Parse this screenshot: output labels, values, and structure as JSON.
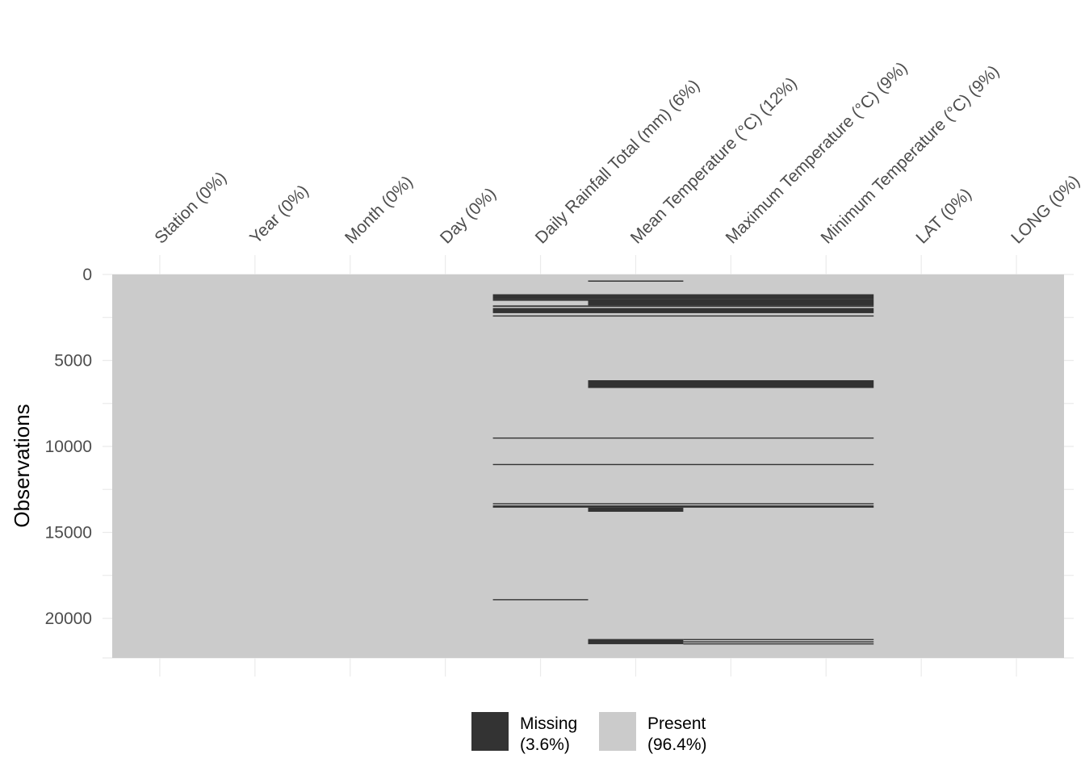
{
  "chart_data": {
    "type": "heatmap",
    "ylabel": "Observations",
    "n_rows": 22300,
    "columns": [
      {
        "name": "Station",
        "label": "Station (0%)"
      },
      {
        "name": "Year",
        "label": "Year (0%)"
      },
      {
        "name": "Month",
        "label": "Month (0%)"
      },
      {
        "name": "Day",
        "label": "Day (0%)"
      },
      {
        "name": "Daily Rainfall Total (mm)",
        "label": "Daily Rainfall Total (mm) (6%)"
      },
      {
        "name": "Mean Temperature (°C)",
        "label": "Mean Temperature (°C) (12%)"
      },
      {
        "name": "Maximum Temperature (°C)",
        "label": "Maximum Temperature (°C) (9%)"
      },
      {
        "name": "Minimum Temperature (°C)",
        "label": "Minimum Temperature (°C) (9%)"
      },
      {
        "name": "LAT",
        "label": "LAT (0%)"
      },
      {
        "name": "LONG",
        "label": "LONG (0%)"
      }
    ],
    "y_ticks": [
      {
        "value": 0,
        "label": "0"
      },
      {
        "value": 5000,
        "label": "5000"
      },
      {
        "value": 10000,
        "label": "10000"
      },
      {
        "value": 15000,
        "label": "15000"
      },
      {
        "value": 20000,
        "label": "20000"
      }
    ],
    "missing_segments": [
      {
        "col_start": 5,
        "col_end": 5,
        "start": 350,
        "end": 420
      },
      {
        "col_start": 4,
        "col_end": 7,
        "start": 1150,
        "end": 1450
      },
      {
        "col_start": 4,
        "col_end": 4,
        "start": 1450,
        "end": 1530
      },
      {
        "col_start": 5,
        "col_end": 7,
        "start": 1450,
        "end": 1800
      },
      {
        "col_start": 4,
        "col_end": 7,
        "start": 1800,
        "end": 1880
      },
      {
        "col_start": 4,
        "col_end": 7,
        "start": 1950,
        "end": 2250
      },
      {
        "col_start": 4,
        "col_end": 7,
        "start": 2380,
        "end": 2440
      },
      {
        "col_start": 5,
        "col_end": 7,
        "start": 6150,
        "end": 6600
      },
      {
        "col_start": 4,
        "col_end": 7,
        "start": 9480,
        "end": 9540
      },
      {
        "col_start": 4,
        "col_end": 7,
        "start": 11020,
        "end": 11080
      },
      {
        "col_start": 4,
        "col_end": 7,
        "start": 13300,
        "end": 13360
      },
      {
        "col_start": 4,
        "col_end": 7,
        "start": 13430,
        "end": 13560
      },
      {
        "col_start": 5,
        "col_end": 5,
        "start": 13560,
        "end": 13800
      },
      {
        "col_start": 4,
        "col_end": 4,
        "start": 18880,
        "end": 18940
      },
      {
        "col_start": 5,
        "col_end": 5,
        "start": 21200,
        "end": 21500
      },
      {
        "col_start": 6,
        "col_end": 7,
        "start": 21200,
        "end": 21260
      },
      {
        "col_start": 6,
        "col_end": 7,
        "start": 21330,
        "end": 21390
      },
      {
        "col_start": 6,
        "col_end": 7,
        "start": 21450,
        "end": 21510
      }
    ],
    "legend": [
      {
        "label": "Missing",
        "pct": "(3.6%)",
        "color": "#333333"
      },
      {
        "label": "Present",
        "pct": "(96.4%)",
        "color": "#cbcbcb"
      }
    ],
    "legend_position": "bottom",
    "grid": true
  }
}
